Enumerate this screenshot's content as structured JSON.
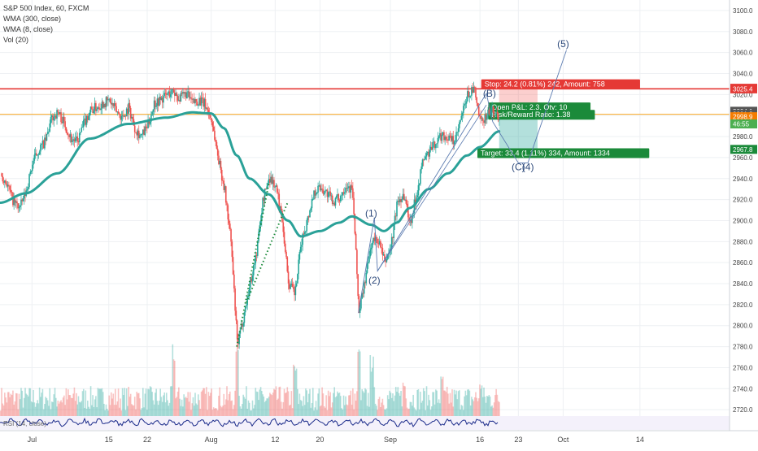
{
  "chart_data": {
    "type": "candlestick",
    "title": "S&P 500 Index, 60, FXCM",
    "indicators": [
      "WMA (300, close)",
      "WMA (8, close)",
      "Vol (20)"
    ],
    "y_axis": {
      "position": "right",
      "ylim": [
        2700,
        3110
      ],
      "ticks": [
        2720,
        2740,
        2760,
        2780,
        2800,
        2820,
        2840,
        2860,
        2880,
        2900,
        2920,
        2940,
        2960,
        2980,
        3000,
        3020,
        3040,
        3060,
        3080,
        3100
      ],
      "tick_labels": [
        "2720.0",
        "2740.0",
        "2760.0",
        "2780.0",
        "2800.0",
        "2820.0",
        "2840.0",
        "2860.0",
        "2880.0",
        "2900.0",
        "2920.0",
        "2940.0",
        "2960.0",
        "2980.0",
        "3000.0",
        "3020.0",
        "3040.0",
        "3060.0",
        "3080.0",
        "3100.0"
      ]
    },
    "x_axis": {
      "labels": [
        {
          "label": "Jul",
          "index": 5
        },
        {
          "label": "15",
          "index": 17
        },
        {
          "label": "22",
          "index": 23
        },
        {
          "label": "Aug",
          "index": 33
        },
        {
          "label": "12",
          "index": 43
        },
        {
          "label": "20",
          "index": 50
        },
        {
          "label": "Sep",
          "index": 61
        },
        {
          "label": "16",
          "index": 75
        },
        {
          "label": "23",
          "index": 81
        },
        {
          "label": "Oct",
          "index": 88
        },
        {
          "label": "14",
          "index": 100
        }
      ],
      "last_index": 114
    },
    "price_path": [
      [
        0,
        2945
      ],
      [
        1,
        2935
      ],
      [
        2,
        2918
      ],
      [
        3,
        2912
      ],
      [
        4,
        2928
      ],
      [
        5,
        2955
      ],
      [
        6,
        2968
      ],
      [
        7,
        2975
      ],
      [
        8,
        2998
      ],
      [
        9,
        3003
      ],
      [
        10,
        2992
      ],
      [
        11,
        2978
      ],
      [
        12,
        2975
      ],
      [
        13,
        2992
      ],
      [
        14,
        3005
      ],
      [
        15,
        3008
      ],
      [
        16,
        3012
      ],
      [
        17,
        3014
      ],
      [
        18,
        3005
      ],
      [
        19,
        2998
      ],
      [
        20,
        3008
      ],
      [
        21,
        2988
      ],
      [
        22,
        2980
      ],
      [
        23,
        2990
      ],
      [
        24,
        3012
      ],
      [
        25,
        3015
      ],
      [
        26,
        3020
      ],
      [
        27,
        3023
      ],
      [
        28,
        3016
      ],
      [
        29,
        3021
      ],
      [
        30,
        3012
      ],
      [
        31,
        3015
      ],
      [
        32,
        3010
      ],
      [
        33,
        2995
      ],
      [
        34,
        2960
      ],
      [
        35,
        2930
      ],
      [
        36,
        2880
      ],
      [
        37,
        2780
      ],
      [
        38,
        2810
      ],
      [
        39,
        2840
      ],
      [
        40,
        2870
      ],
      [
        41,
        2920
      ],
      [
        42,
        2942
      ],
      [
        43,
        2932
      ],
      [
        44,
        2902
      ],
      [
        45,
        2840
      ],
      [
        46,
        2830
      ],
      [
        47,
        2880
      ],
      [
        48,
        2902
      ],
      [
        49,
        2928
      ],
      [
        50,
        2932
      ],
      [
        51,
        2926
      ],
      [
        52,
        2918
      ],
      [
        53,
        2922
      ],
      [
        54,
        2935
      ],
      [
        55,
        2928
      ],
      [
        56,
        2812
      ],
      [
        57,
        2845
      ],
      [
        58,
        2880
      ],
      [
        59,
        2882
      ],
      [
        60,
        2860
      ],
      [
        61,
        2875
      ],
      [
        62,
        2918
      ],
      [
        63,
        2925
      ],
      [
        64,
        2898
      ],
      [
        65,
        2925
      ],
      [
        66,
        2958
      ],
      [
        67,
        2965
      ],
      [
        68,
        2975
      ],
      [
        69,
        2982
      ],
      [
        70,
        2978
      ],
      [
        71,
        2975
      ],
      [
        72,
        2998
      ],
      [
        73,
        3020
      ],
      [
        74,
        3025
      ],
      [
        75,
        2992
      ],
      [
        76,
        3002
      ],
      [
        77,
        3005
      ],
      [
        78,
        2998
      ]
    ],
    "wma_300": [
      [
        0,
        2917
      ],
      [
        4,
        2926
      ],
      [
        9,
        2945
      ],
      [
        14,
        2978
      ],
      [
        20,
        2992
      ],
      [
        26,
        2998
      ],
      [
        30,
        3003
      ],
      [
        33,
        3002
      ],
      [
        35,
        2988
      ],
      [
        37,
        2962
      ],
      [
        39,
        2940
      ],
      [
        42,
        2925
      ],
      [
        45,
        2900
      ],
      [
        47,
        2885
      ],
      [
        50,
        2890
      ],
      [
        53,
        2898
      ],
      [
        55,
        2904
      ],
      [
        58,
        2896
      ],
      [
        60,
        2890
      ],
      [
        62,
        2898
      ],
      [
        64,
        2912
      ],
      [
        67,
        2930
      ],
      [
        70,
        2945
      ],
      [
        73,
        2962
      ],
      [
        75,
        2970
      ],
      [
        78,
        2985
      ]
    ],
    "volume": {
      "ylim": [
        0,
        100
      ],
      "avg": 30,
      "peaks": [
        [
          27,
          82
        ],
        [
          37,
          95
        ],
        [
          46,
          60
        ],
        [
          56,
          75
        ],
        [
          58,
          68
        ],
        [
          63,
          40
        ],
        [
          69,
          45
        ],
        [
          75,
          38
        ]
      ]
    },
    "lines": {
      "resistance": {
        "price": 3025.4,
        "label": "3025.4",
        "color": "#e53935"
      },
      "support": {
        "price": 3001.2,
        "color": "#f6a623"
      }
    },
    "price_tags": [
      {
        "price": 3026.0,
        "label": "3026.0",
        "color": "#e53935"
      },
      {
        "price": 3025.4,
        "label": "3025.4",
        "color": "#e53935"
      },
      {
        "price": 3004.1,
        "label": "3004.1",
        "color": "#555555"
      },
      {
        "price": 3001.2,
        "label": "3001.2",
        "color": "#555555"
      },
      {
        "price": 2998.9,
        "label": "2998.9",
        "color": "#f57c00"
      },
      {
        "price": 2992.0,
        "label": "46:55",
        "color": "#4caf50"
      },
      {
        "price": 2967.8,
        "label": "2967.8",
        "color": "#1b8a3a"
      }
    ],
    "position": {
      "entry_price": 3001.2,
      "stop_price": 3025.4,
      "target_price": 2967.8,
      "x_start": 78,
      "x_end": 84,
      "stop_label": "Stop: 24.2 (0.81%) 242, Amount: 758",
      "open_label": "Open P&L: 2.3, Qty: 10",
      "ratio_label": "Risk/Reward Ratio: 1.38",
      "target_label": "Target: 33.4 (1.11%) 334, Amount: 1334"
    },
    "wave_labels": [
      {
        "text": "(1)",
        "index": 58,
        "price": 2904
      },
      {
        "text": "(2)",
        "index": 58.5,
        "price": 2840
      },
      {
        "text": "(B)",
        "index": 76.5,
        "price": 3018
      },
      {
        "text": "(C)",
        "index": 81,
        "price": 2948
      },
      {
        "text": "(4)",
        "index": 82.5,
        "price": 2948
      },
      {
        "text": "(5)",
        "index": 88,
        "price": 3065
      }
    ],
    "rsi_label": "RSI (14, close)"
  }
}
